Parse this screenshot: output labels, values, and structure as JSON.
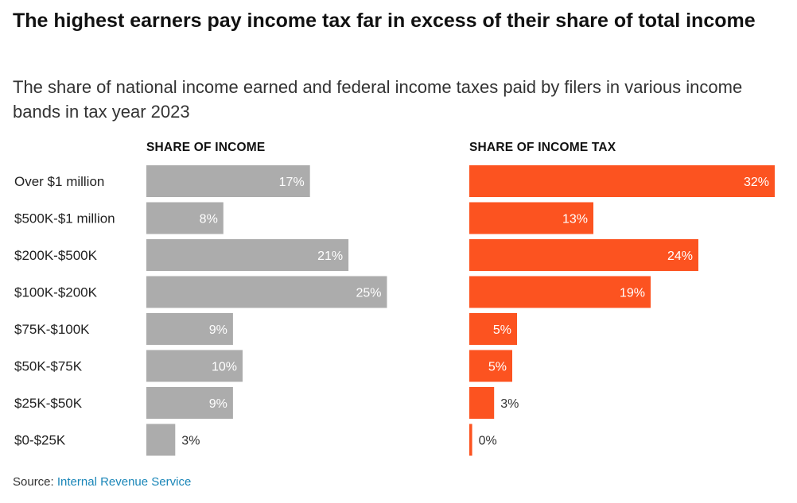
{
  "title": "The highest earners pay income tax far in excess of their share of total income",
  "subtitle": "The share of national income earned and federal income taxes paid by filers in various income bands in tax year 2023",
  "source": {
    "label": "Source:",
    "link_text": "Internal Revenue Service"
  },
  "colors": {
    "income_bar": "#acacac",
    "tax_bar": "#fc5320",
    "link": "#1a86b8"
  },
  "chart_data": {
    "type": "bar",
    "orientation": "horizontal",
    "title": "The highest earners pay income tax far in excess of their share of total income",
    "categories": [
      "Over $1 million",
      "$500K-$1 million",
      "$200K-$500K",
      "$100K-$200K",
      "$75K-$100K",
      "$50K-$75K",
      "$25K-$50K",
      "$0-$25K"
    ],
    "series": [
      {
        "name": "SHARE OF INCOME",
        "values": [
          17,
          8,
          21,
          25,
          9,
          10,
          9,
          3
        ],
        "labels": [
          "17%",
          "8%",
          "21%",
          "25%",
          "9%",
          "10%",
          "9%",
          "3%"
        ],
        "color": "#acacac"
      },
      {
        "name": "SHARE OF INCOME TAX",
        "values": [
          32,
          13,
          24,
          19,
          5,
          4.5,
          2.6,
          0.3
        ],
        "labels": [
          "32%",
          "13%",
          "24%",
          "19%",
          "5%",
          "5%",
          "3%",
          "0%"
        ],
        "color": "#fc5320"
      }
    ],
    "unit": "%",
    "xlim": [
      0,
      32
    ]
  }
}
